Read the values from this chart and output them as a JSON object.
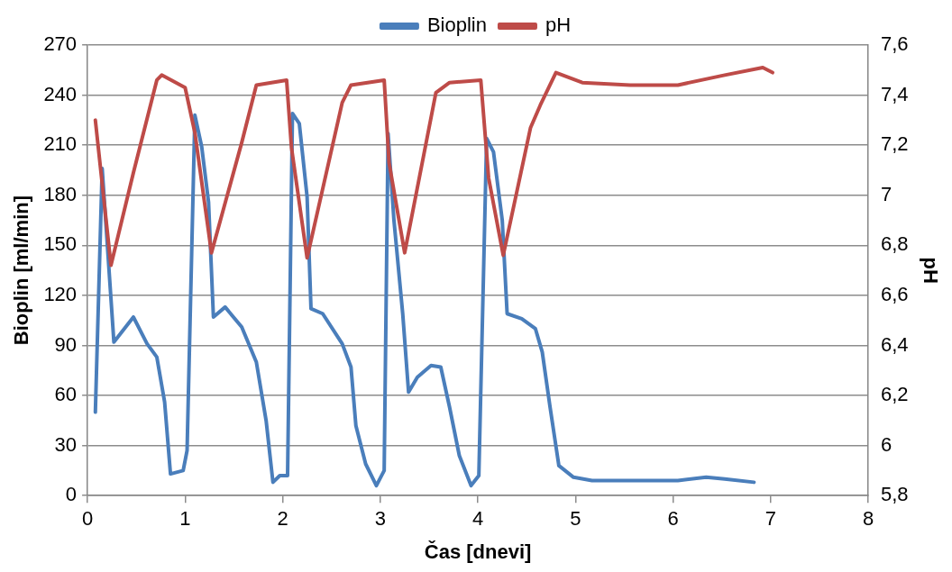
{
  "chart_data": {
    "type": "line",
    "xlabel": "Čas [dnevi]",
    "ylabel": "Bioplin [ml/min]",
    "y2label": "pH",
    "xlim": [
      0,
      8
    ],
    "xticks": [
      0,
      1,
      2,
      3,
      4,
      5,
      6,
      7,
      8
    ],
    "ylim": [
      0,
      270
    ],
    "yticks": [
      0,
      30,
      60,
      90,
      120,
      150,
      180,
      210,
      240,
      270
    ],
    "y2lim": [
      5.8,
      7.6
    ],
    "y2ticks": [
      {
        "value": 5.8,
        "label": "5,8"
      },
      6,
      {
        "value": 6.2,
        "label": "6,2"
      },
      {
        "value": 6.4,
        "label": "6,4"
      },
      {
        "value": 6.6,
        "label": "6,6"
      },
      {
        "value": 6.8,
        "label": "6,8"
      },
      7,
      {
        "value": 7.2,
        "label": "7,2"
      },
      {
        "value": 7.4,
        "label": "7,4"
      },
      {
        "value": 7.6,
        "label": "7,6"
      }
    ],
    "grid": "y",
    "legend": "top",
    "marker": "none",
    "line_style": "solid",
    "series": [
      {
        "name": "Bioplin",
        "color": "#4a7ebb",
        "x": [
          0.08,
          0.15,
          0.27,
          0.47,
          0.61,
          0.71,
          0.79,
          0.85,
          0.98,
          1.02,
          1.1,
          1.17,
          1.24,
          1.29,
          1.41,
          1.58,
          1.73,
          1.83,
          1.9,
          1.97,
          2.05,
          2.1,
          2.17,
          2.25,
          2.29,
          2.41,
          2.61,
          2.7,
          2.75,
          2.85,
          2.96,
          3.04,
          3.08,
          3.14,
          3.23,
          3.29,
          3.38,
          3.52,
          3.62,
          3.71,
          3.81,
          3.93,
          4.01,
          4.09,
          4.16,
          4.25,
          4.3,
          4.45,
          4.59,
          4.66,
          4.74,
          4.83,
          4.98,
          5.17,
          5.56,
          6.05,
          6.34,
          6.53,
          6.83
        ],
        "values": [
          50,
          196,
          92,
          107,
          91,
          83,
          56,
          13,
          15,
          27,
          228,
          209,
          176,
          107,
          113,
          101,
          80,
          45,
          8,
          12,
          12,
          229,
          223,
          179,
          112,
          109,
          91,
          77,
          42,
          19,
          6,
          15,
          217,
          165,
          109,
          62,
          71,
          78,
          77,
          53,
          24,
          6,
          12,
          214,
          206,
          165,
          109,
          106,
          100,
          86,
          53,
          18,
          11,
          9,
          9,
          9,
          11,
          10,
          8
        ]
      },
      {
        "name": "pH",
        "color": "#be4b48",
        "axis": "y2",
        "x": [
          0.08,
          0.24,
          0.47,
          0.71,
          0.76,
          1.0,
          1.1,
          1.27,
          1.58,
          1.73,
          2.04,
          2.09,
          2.25,
          2.61,
          2.7,
          3.04,
          3.09,
          3.25,
          3.57,
          3.71,
          4.03,
          4.11,
          4.26,
          4.54,
          4.64,
          4.8,
          5.07,
          5.56,
          6.05,
          6.53,
          6.92,
          7.02
        ],
        "values": [
          7.3,
          6.72,
          7.09,
          7.46,
          7.48,
          7.43,
          7.25,
          6.77,
          7.21,
          7.44,
          7.46,
          7.19,
          6.75,
          7.37,
          7.44,
          7.46,
          7.13,
          6.77,
          7.41,
          7.45,
          7.46,
          7.07,
          6.76,
          7.27,
          7.36,
          7.49,
          7.45,
          7.44,
          7.44,
          7.48,
          7.51,
          7.49
        ]
      }
    ]
  }
}
